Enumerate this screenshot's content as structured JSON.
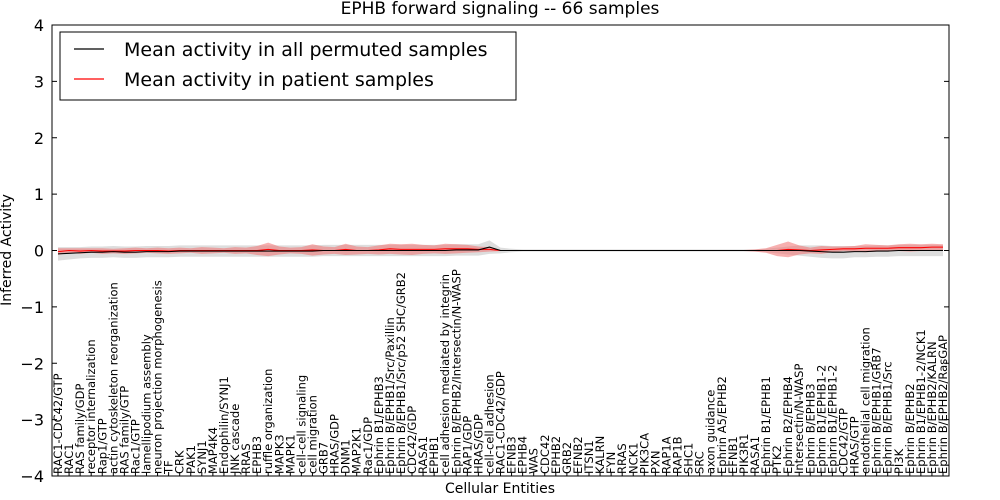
{
  "chart_data": {
    "type": "line",
    "title": "EPHB forward signaling -- 66 samples",
    "xlabel": "Cellular Entities",
    "ylabel": "Inferred Activity",
    "ylim": [
      -4,
      4
    ],
    "yticks": [
      -4,
      -3,
      -2,
      -1,
      0,
      1,
      2,
      3,
      4
    ],
    "ytick_labels": [
      "−4",
      "−3",
      "−2",
      "−1",
      "0",
      "1",
      "2",
      "3",
      "4"
    ],
    "legend": {
      "placement": "top-left"
    },
    "categories": [
      "RAC1-CDC42/GTP",
      "RAC1",
      "RAS family/GDP",
      "receptor internalization",
      "Rap1/GTP",
      "actin cytoskeleton reorganization",
      "RAS family/GTP",
      "Rac1/GTP",
      "lamellipodium assembly",
      "neuron projection morphogenesis",
      "TF",
      "CRK",
      "PAK1",
      "SYNJ1",
      "MAP4K4",
      "Endophilin/SYNJ1",
      "JNK cascade",
      "RRAS",
      "EPHB3",
      "ruffle organization",
      "MAPK3",
      "MAPK1",
      "cell-cell signaling",
      "cell migration",
      "GRB7",
      "HRAS/GDP",
      "DNM1",
      "MAP2K1",
      "Rac1/GDP",
      "Ephrin B1/EPHB3",
      "Ephrin B/EPHB1/Src/Paxillin",
      "Ephrin B/EPHB1/Src/p52 SHC/GRB2",
      "CDC42/GDP",
      "RASA1",
      "EPHB1",
      "cell adhesion mediated by integrin",
      "Ephrin B/EPHB2/Intersectin/N-WASP",
      "RAP1/GDP",
      "HRAS/GDP",
      "cell-cell adhesion",
      "RAC1-CDC42/GDP",
      "EFNB3",
      "EPHB4",
      "WAS",
      "CDC42",
      "EPHB2",
      "GRB2",
      "EFNB2",
      "ITSN1",
      "KALRN",
      "FYN",
      "RRAS",
      "NCK1",
      "PIK3CA",
      "PXN",
      "RAP1A",
      "RAP1B",
      "SHC1",
      "SRC",
      "axon guidance",
      "Ephrin A5/EPHB2",
      "EFNB1",
      "PIK3R1",
      "RASA1",
      "Ephrin B1/EPHB1",
      "PTK2",
      "Ephrin B2/EPHB4",
      "Intersectin/N-WASP",
      "Ephrin B/EPHB3",
      "Ephrin B1/EPHB1-2",
      "Ephrin B1/EPHB1-2",
      "CDC42/GTP",
      "HRAS/GTP",
      "endothelial cell migration",
      "Ephrin B/EPHB1/GRB7",
      "Ephrin B/EPHB1/Src",
      "PI3K",
      "Ephrin B/EPHB2",
      "Ephrin B1/EPHB1-2/NCK1",
      "Ephrin B/EPHB2/KALRN",
      "Ephrin B/EPHB2/RasGAP"
    ],
    "series": [
      {
        "name": "Mean activity in all permuted samples",
        "color": "#000000",
        "band_color": "#b3b3b3",
        "values": [
          -0.06,
          -0.05,
          -0.04,
          -0.03,
          -0.03,
          -0.02,
          -0.03,
          -0.03,
          -0.02,
          -0.02,
          -0.02,
          -0.01,
          -0.01,
          -0.01,
          -0.01,
          -0.01,
          -0.01,
          -0.01,
          -0.01,
          -0.01,
          -0.01,
          -0.01,
          -0.01,
          -0.01,
          0.0,
          0.0,
          0.0,
          0.0,
          0.0,
          0.0,
          0.0,
          0.0,
          0.0,
          0.0,
          0.0,
          0.0,
          0.01,
          0.01,
          0.01,
          0.06,
          0.0,
          0.0,
          0.0,
          0.0,
          0.0,
          0.0,
          0.0,
          0.0,
          0.0,
          0.0,
          0.0,
          0.0,
          0.0,
          0.0,
          0.0,
          0.0,
          0.0,
          0.0,
          0.0,
          0.0,
          0.0,
          0.0,
          0.0,
          0.0,
          0.0,
          0.0,
          0.0,
          0.0,
          -0.01,
          -0.02,
          -0.03,
          -0.03,
          -0.02,
          -0.02,
          -0.01,
          -0.01,
          0.0,
          0.0,
          0.0,
          0.0,
          0.0
        ],
        "band": [
          0.12,
          0.11,
          0.1,
          0.1,
          0.1,
          0.1,
          0.1,
          0.1,
          0.1,
          0.1,
          0.1,
          0.1,
          0.1,
          0.1,
          0.1,
          0.1,
          0.1,
          0.1,
          0.1,
          0.1,
          0.1,
          0.1,
          0.1,
          0.1,
          0.1,
          0.1,
          0.1,
          0.1,
          0.1,
          0.1,
          0.1,
          0.1,
          0.1,
          0.1,
          0.1,
          0.1,
          0.1,
          0.1,
          0.1,
          0.12,
          0.05,
          0.03,
          0.02,
          0.02,
          0.02,
          0.02,
          0.02,
          0.02,
          0.02,
          0.02,
          0.02,
          0.02,
          0.02,
          0.02,
          0.02,
          0.02,
          0.02,
          0.02,
          0.02,
          0.02,
          0.02,
          0.02,
          0.02,
          0.02,
          0.03,
          0.05,
          0.07,
          0.09,
          0.1,
          0.11,
          0.11,
          0.11,
          0.1,
          0.1,
          0.1,
          0.1,
          0.1,
          0.1,
          0.1,
          0.1,
          0.1
        ]
      },
      {
        "name": "Mean activity in patient samples",
        "color": "#ff0000",
        "band_color": "#f07070",
        "values": [
          -0.02,
          0.0,
          -0.01,
          0.0,
          -0.01,
          -0.01,
          -0.01,
          0.0,
          0.0,
          0.0,
          -0.01,
          0.0,
          0.0,
          0.0,
          0.0,
          0.0,
          0.0,
          0.0,
          0.0,
          0.02,
          0.0,
          0.0,
          0.0,
          0.01,
          0.0,
          0.0,
          0.02,
          0.0,
          0.0,
          0.01,
          0.03,
          0.02,
          0.02,
          0.02,
          0.02,
          0.03,
          0.03,
          0.03,
          0.02,
          0.02,
          0.0,
          0.0,
          0.0,
          0.0,
          0.0,
          0.0,
          0.0,
          0.0,
          0.0,
          0.0,
          0.0,
          0.0,
          0.0,
          0.0,
          0.0,
          0.0,
          0.0,
          0.0,
          0.0,
          0.0,
          0.0,
          0.0,
          0.0,
          0.0,
          0.0,
          0.0,
          0.02,
          0.01,
          0.0,
          0.01,
          0.02,
          0.03,
          0.03,
          0.04,
          0.04,
          0.04,
          0.05,
          0.05,
          0.05,
          0.06,
          0.06
        ],
        "band": [
          0.06,
          0.04,
          0.05,
          0.04,
          0.05,
          0.04,
          0.05,
          0.05,
          0.04,
          0.05,
          0.05,
          0.05,
          0.04,
          0.06,
          0.05,
          0.04,
          0.06,
          0.05,
          0.08,
          0.12,
          0.07,
          0.05,
          0.06,
          0.1,
          0.07,
          0.06,
          0.1,
          0.07,
          0.06,
          0.08,
          0.09,
          0.09,
          0.1,
          0.08,
          0.07,
          0.09,
          0.08,
          0.07,
          0.05,
          0.04,
          0.01,
          0.01,
          0.01,
          0.01,
          0.01,
          0.01,
          0.01,
          0.01,
          0.01,
          0.01,
          0.01,
          0.01,
          0.01,
          0.01,
          0.01,
          0.01,
          0.01,
          0.01,
          0.01,
          0.01,
          0.01,
          0.01,
          0.01,
          0.02,
          0.04,
          0.1,
          0.14,
          0.08,
          0.05,
          0.07,
          0.05,
          0.04,
          0.05,
          0.07,
          0.06,
          0.05,
          0.06,
          0.07,
          0.06,
          0.06,
          0.05
        ]
      }
    ]
  }
}
